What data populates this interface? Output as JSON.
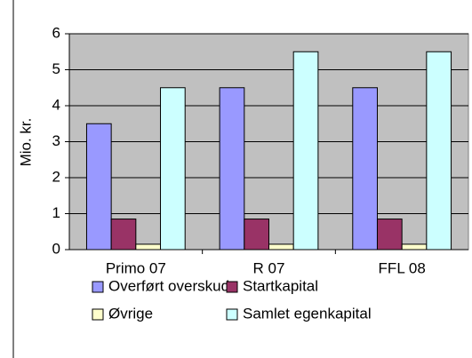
{
  "chart_data": {
    "type": "bar",
    "y_label": "Mio. kr.",
    "categories": [
      "Primo 07",
      "R 07",
      "FFL 08"
    ],
    "series": [
      {
        "name": "Overført overskud",
        "color": "#9999ff",
        "values": [
          3.5,
          4.5,
          4.5
        ]
      },
      {
        "name": "Startkapital",
        "color": "#993366",
        "values": [
          0.85,
          0.85,
          0.85
        ]
      },
      {
        "name": "Øvrige",
        "color": "#ffffcc",
        "values": [
          0.15,
          0.15,
          0.15
        ]
      },
      {
        "name": "Samlet egenkapital",
        "color": "#ccffff",
        "values": [
          4.5,
          5.5,
          5.5
        ]
      }
    ],
    "ylim": [
      0,
      6
    ],
    "yticks": [
      0,
      1,
      2,
      3,
      4,
      5,
      6
    ],
    "grid": true,
    "plot_background": "#c0c0c0"
  }
}
